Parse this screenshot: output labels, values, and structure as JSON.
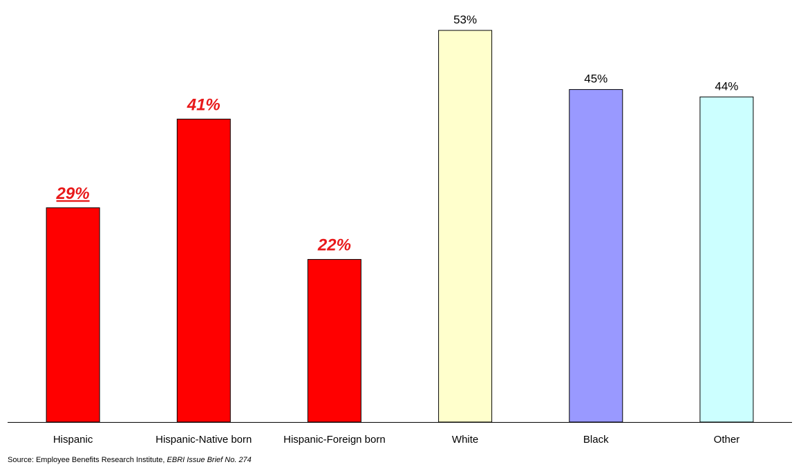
{
  "chart_data": {
    "type": "bar",
    "categories": [
      "Hispanic",
      "Hispanic-Native born",
      "Hispanic-Foreign born",
      "White",
      "Black",
      "Other"
    ],
    "values": [
      29,
      41,
      22,
      53,
      45,
      44
    ],
    "data_labels": [
      "29%",
      "41%",
      "22%",
      "53%",
      "45%",
      "44%"
    ],
    "bar_colors": [
      "#ff0000",
      "#ff0000",
      "#ff0000",
      "#ffffcc",
      "#9999ff",
      "#ccffff"
    ],
    "label_colors": [
      "#e8191a",
      "#e8191a",
      "#e8191a",
      "#000000",
      "#000000",
      "#000000"
    ],
    "label_emphasis": [
      "bold-italic-underline",
      "bold-italic",
      "bold-italic",
      "normal",
      "normal",
      "normal"
    ],
    "ylim": [
      0,
      53
    ],
    "grid": false,
    "legend": "none"
  },
  "footer": {
    "source_prefix": "Source: Employee Benefits Research Institute, ",
    "source_title": "EBRI Issue Brief No. 274"
  }
}
